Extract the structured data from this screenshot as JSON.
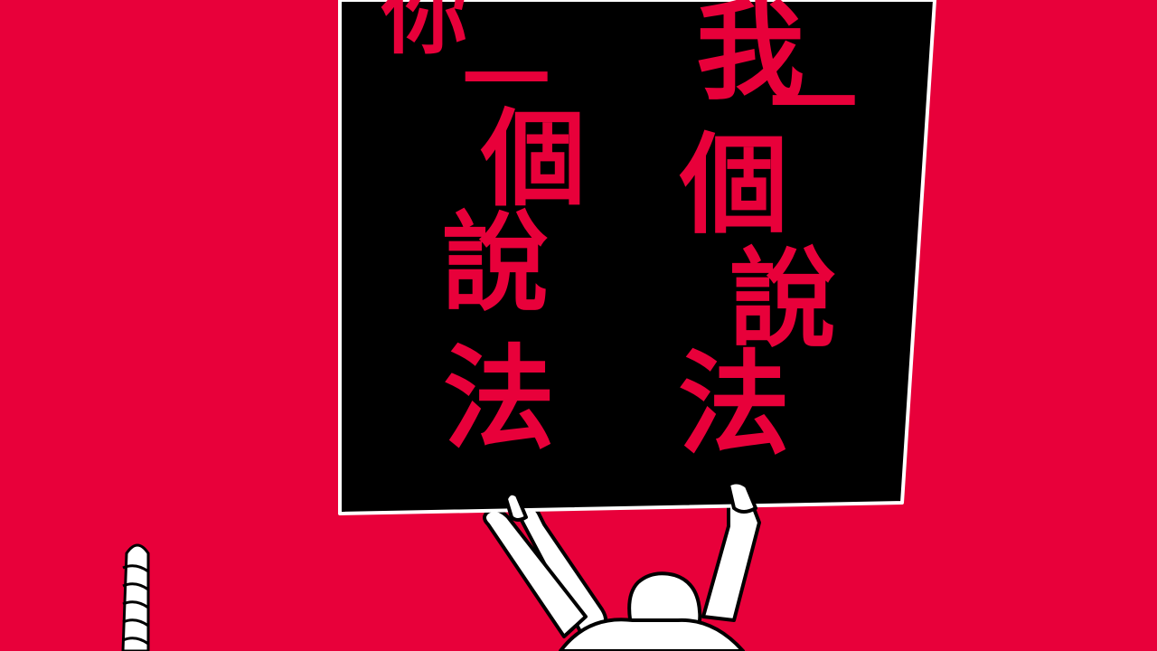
{
  "colors": {
    "background": "#e8003a",
    "board": "#000000",
    "board_text": "#e8003a",
    "figure_fill": "#ffffff",
    "figure_stroke": "#000000"
  },
  "sign": {
    "left_column": [
      "你",
      "一",
      "個",
      "說",
      "法"
    ],
    "right_column": [
      "我",
      "一",
      "個",
      "說",
      "法"
    ]
  }
}
